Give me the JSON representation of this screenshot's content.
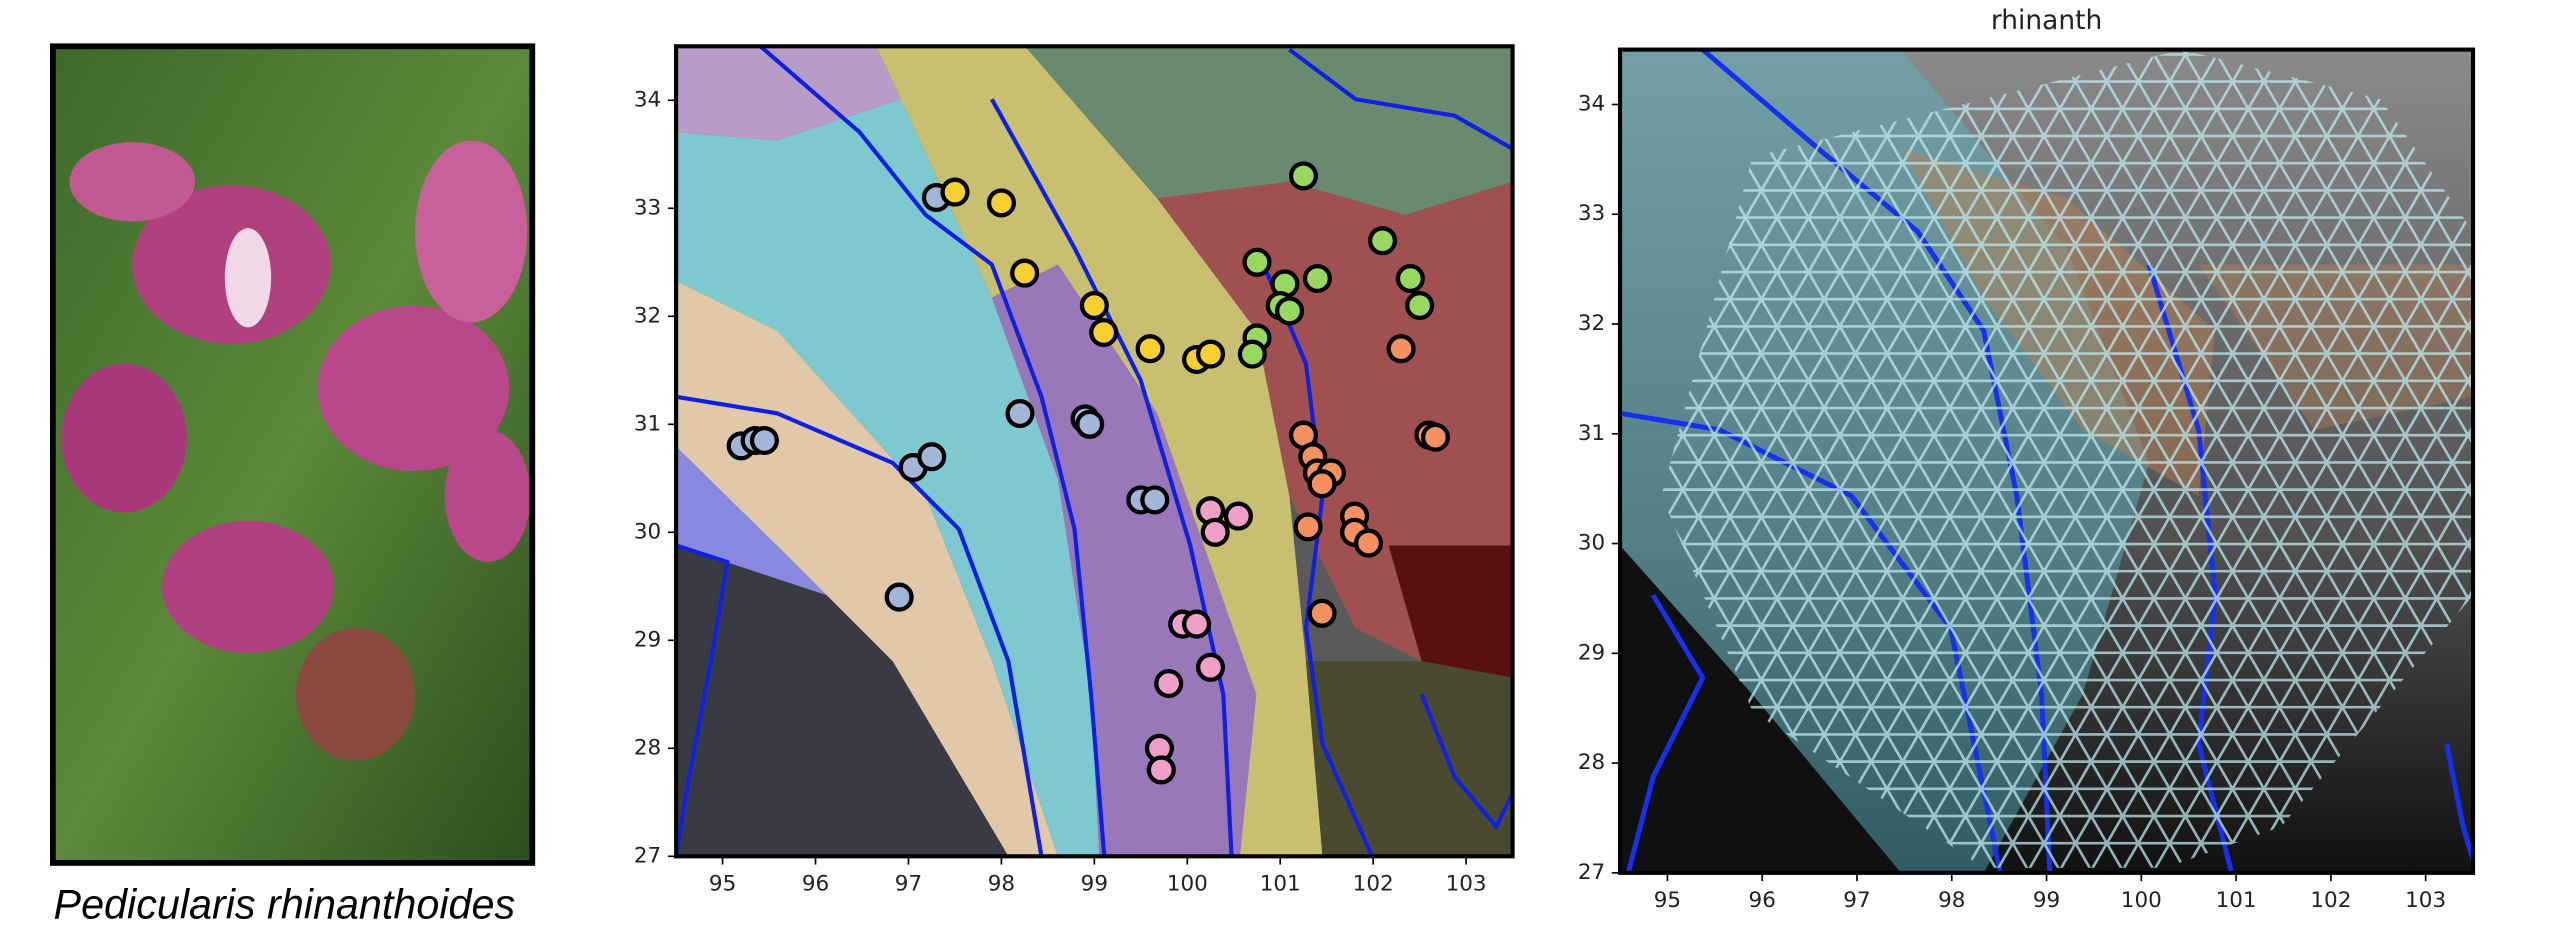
{
  "figure": {
    "caption": "Pedicularis rhinanthoides"
  },
  "chart_data": [
    {
      "type": "scatter",
      "xlim": [
        94.5,
        103.5
      ],
      "ylim": [
        27,
        34.5
      ],
      "xticks": [
        95,
        96,
        97,
        98,
        99,
        100,
        101,
        102,
        103
      ],
      "yticks": [
        27,
        28,
        29,
        30,
        31,
        32,
        33,
        34
      ],
      "series": [
        {
          "color": "#a3b6d8",
          "x": [
            95.2,
            95.35,
            95.45,
            98.2,
            98.9,
            98.95,
            97.05,
            97.25,
            96.9,
            99.5,
            99.65,
            97.3
          ],
          "y": [
            30.8,
            30.85,
            30.85,
            31.1,
            31.05,
            31.0,
            30.6,
            30.7,
            29.4,
            30.3,
            30.3,
            33.1
          ]
        },
        {
          "color": "#f5d030",
          "x": [
            97.5,
            98.0,
            98.25,
            99.0,
            99.1,
            99.6,
            100.1,
            100.25
          ],
          "y": [
            33.15,
            33.05,
            32.4,
            32.1,
            31.85,
            31.7,
            31.6,
            31.65
          ]
        },
        {
          "color": "#98d860",
          "x": [
            101.25,
            102.1,
            100.75,
            101.05,
            101.4,
            101.0,
            101.1,
            102.4,
            102.5,
            100.75,
            100.7
          ],
          "y": [
            33.3,
            32.7,
            32.5,
            32.3,
            32.35,
            32.1,
            32.05,
            32.35,
            32.1,
            31.8,
            31.65
          ]
        },
        {
          "color": "#f59060",
          "x": [
            102.3,
            101.25,
            102.6,
            102.67,
            101.35,
            101.4,
            101.55,
            101.45,
            101.3,
            101.8,
            101.8,
            101.95,
            101.45
          ],
          "y": [
            31.7,
            30.9,
            30.9,
            30.88,
            30.7,
            30.55,
            30.55,
            30.45,
            30.05,
            30.15,
            30.0,
            29.9,
            29.25
          ]
        },
        {
          "color": "#f0a0c8",
          "x": [
            100.25,
            100.3,
            100.55,
            99.95,
            100.1,
            100.25,
            99.8,
            99.7,
            99.72
          ],
          "y": [
            30.2,
            30.0,
            30.15,
            29.15,
            29.15,
            28.75,
            28.6,
            28.0,
            27.8
          ]
        }
      ]
    },
    {
      "type": "grid-map",
      "title": "rhinanth",
      "xlim": [
        94.5,
        103.5
      ],
      "ylim": [
        27,
        34.5
      ],
      "xticks": [
        95,
        96,
        97,
        98,
        99,
        100,
        101,
        102,
        103
      ],
      "yticks": [
        27,
        28,
        29,
        30,
        31,
        32,
        33,
        34
      ]
    }
  ]
}
